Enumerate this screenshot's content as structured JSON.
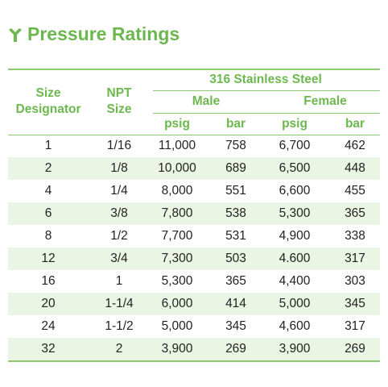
{
  "title": "Pressure Ratings",
  "table": {
    "header": {
      "size": "Size Designator",
      "npt": "NPT Size",
      "group": "316 Stainless Steel",
      "male": "Male",
      "female": "Female",
      "units": [
        "psig",
        "bar",
        "psig",
        "bar"
      ]
    },
    "rows": [
      [
        "1",
        "1/16",
        "11,000",
        "758",
        "6,700",
        "462"
      ],
      [
        "2",
        "1/8",
        "10,000",
        "689",
        "6,500",
        "448"
      ],
      [
        "4",
        "1/4",
        "8,000",
        "551",
        "6,600",
        "455"
      ],
      [
        "6",
        "3/8",
        "7,800",
        "538",
        "5,300",
        "365"
      ],
      [
        "8",
        "1/2",
        "7,700",
        "531",
        "4,900",
        "338"
      ],
      [
        "12",
        "3/4",
        "7,300",
        "503",
        "4.600",
        "317"
      ],
      [
        "16",
        "1",
        "5,300",
        "365",
        "4,400",
        "303"
      ],
      [
        "20",
        "1-1/4",
        "6,000",
        "414",
        "5,000",
        "345"
      ],
      [
        "24",
        "1-1/2",
        "5,000",
        "345",
        "4,600",
        "317"
      ],
      [
        "32",
        "2",
        "3,900",
        "269",
        "3,900",
        "269"
      ]
    ]
  }
}
